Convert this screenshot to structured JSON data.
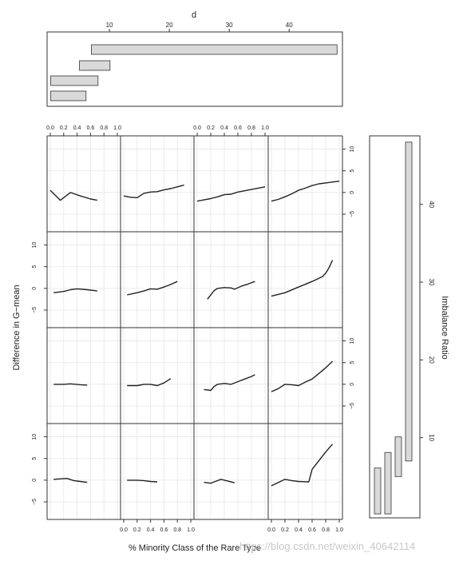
{
  "chart_data": [
    {
      "type": "bar",
      "orientation": "horizontal",
      "title": "d",
      "x_ticks": [
        10,
        20,
        30,
        40
      ],
      "xlim": [
        0,
        48.5
      ],
      "bars": [
        {
          "start": 0.2,
          "end": 6.1
        },
        {
          "start": 0.2,
          "end": 8.1
        },
        {
          "start": 5.0,
          "end": 10.1
        },
        {
          "start": 7.0,
          "end": 48.0
        }
      ],
      "bar_fill": "#d9d9d9"
    },
    {
      "type": "line",
      "layout": "4x4 trellis",
      "xlabel": "% Minority Class of the Rare Type",
      "ylabel": "Difference in G−mean",
      "x_ticks": [
        "0.0",
        "0.2",
        "0.4",
        "0.6",
        "0.8",
        "1.0"
      ],
      "y_ticks": [
        "−5",
        "0",
        "5",
        "10"
      ],
      "xlim": [
        0,
        1
      ],
      "ylim": [
        -8.5,
        12.5
      ],
      "line_color": "#222222",
      "panels": [
        {
          "row": 1,
          "col": 1,
          "x": [
            0.0,
            0.15,
            0.3,
            0.45,
            0.6,
            0.7
          ],
          "y": [
            0.5,
            -1.8,
            0.0,
            -0.8,
            -1.5,
            -1.8
          ]
        },
        {
          "row": 1,
          "col": 2,
          "x": [
            0.0,
            0.1,
            0.2,
            0.3,
            0.4,
            0.5,
            0.6,
            0.7,
            0.8,
            0.9
          ],
          "y": [
            -0.8,
            -1.1,
            -1.2,
            -0.2,
            0.1,
            0.2,
            0.6,
            0.9,
            1.3,
            1.7
          ]
        },
        {
          "row": 1,
          "col": 3,
          "x": [
            0.0,
            0.1,
            0.2,
            0.3,
            0.4,
            0.5,
            0.6,
            0.7,
            0.8,
            0.9,
            1.0
          ],
          "y": [
            -2.0,
            -1.7,
            -1.4,
            -1.0,
            -0.5,
            -0.4,
            0.1,
            0.4,
            0.7,
            1.0,
            1.3
          ]
        },
        {
          "row": 1,
          "col": 4,
          "x": [
            0.0,
            0.1,
            0.2,
            0.3,
            0.4,
            0.5,
            0.6,
            0.7,
            0.8,
            0.9,
            1.0
          ],
          "y": [
            -2.0,
            -1.6,
            -1.0,
            -0.3,
            0.5,
            1.0,
            1.6,
            2.0,
            2.2,
            2.4,
            2.6
          ]
        },
        {
          "row": 2,
          "col": 1,
          "x": [
            0.05,
            0.2,
            0.3,
            0.4,
            0.55,
            0.7
          ],
          "y": [
            -1.0,
            -0.7,
            -0.3,
            -0.1,
            -0.3,
            -0.6
          ]
        },
        {
          "row": 2,
          "col": 2,
          "x": [
            0.05,
            0.2,
            0.3,
            0.4,
            0.5,
            0.6,
            0.7,
            0.8
          ],
          "y": [
            -1.5,
            -1.0,
            -0.6,
            -0.1,
            -0.2,
            0.3,
            0.9,
            1.6
          ]
        },
        {
          "row": 2,
          "col": 3,
          "x": [
            0.15,
            0.25,
            0.3,
            0.4,
            0.5,
            0.55,
            0.65,
            0.75,
            0.85
          ],
          "y": [
            -2.5,
            -0.5,
            0.0,
            0.2,
            0.1,
            -0.2,
            0.5,
            1.0,
            1.6
          ]
        },
        {
          "row": 2,
          "col": 4,
          "x": [
            0.0,
            0.2,
            0.4,
            0.6,
            0.75,
            0.8,
            0.85,
            0.9
          ],
          "y": [
            -1.8,
            -1.0,
            0.3,
            1.6,
            2.7,
            3.5,
            4.8,
            6.5
          ]
        },
        {
          "row": 3,
          "col": 1,
          "x": [
            0.05,
            0.2,
            0.3,
            0.45,
            0.55
          ],
          "y": [
            0.0,
            0.0,
            0.1,
            -0.1,
            -0.2
          ]
        },
        {
          "row": 3,
          "col": 2,
          "x": [
            0.05,
            0.2,
            0.3,
            0.4,
            0.5,
            0.6,
            0.7
          ],
          "y": [
            -0.3,
            -0.3,
            0.0,
            0.0,
            -0.3,
            0.3,
            1.3
          ]
        },
        {
          "row": 3,
          "col": 3,
          "x": [
            0.1,
            0.2,
            0.25,
            0.3,
            0.4,
            0.5,
            0.6,
            0.7,
            0.8,
            0.85
          ],
          "y": [
            -1.2,
            -1.4,
            -0.5,
            0.0,
            0.2,
            0.0,
            0.6,
            1.2,
            1.8,
            2.2
          ]
        },
        {
          "row": 3,
          "col": 4,
          "x": [
            0.0,
            0.1,
            0.2,
            0.3,
            0.4,
            0.5,
            0.6,
            0.7,
            0.8,
            0.9
          ],
          "y": [
            -1.7,
            -1.0,
            0.0,
            -0.1,
            -0.3,
            0.5,
            1.2,
            2.5,
            3.8,
            5.3
          ]
        },
        {
          "row": 4,
          "col": 1,
          "x": [
            0.05,
            0.15,
            0.25,
            0.35,
            0.45,
            0.55
          ],
          "y": [
            0.2,
            0.3,
            0.4,
            -0.1,
            -0.3,
            -0.5
          ]
        },
        {
          "row": 4,
          "col": 2,
          "x": [
            0.05,
            0.2,
            0.3,
            0.4,
            0.5
          ],
          "y": [
            0.0,
            0.0,
            -0.1,
            -0.3,
            -0.4
          ]
        },
        {
          "row": 4,
          "col": 3,
          "x": [
            0.1,
            0.2,
            0.25,
            0.35,
            0.45,
            0.55
          ],
          "y": [
            -0.5,
            -0.7,
            -0.4,
            0.2,
            -0.2,
            -0.6
          ]
        },
        {
          "row": 4,
          "col": 4,
          "x": [
            0.0,
            0.2,
            0.3,
            0.4,
            0.55,
            0.6,
            0.7,
            0.8,
            0.9
          ],
          "y": [
            -1.3,
            0.2,
            -0.1,
            -0.3,
            -0.4,
            2.5,
            4.5,
            6.5,
            8.3
          ]
        }
      ]
    },
    {
      "type": "bar",
      "orientation": "vertical",
      "ylabel": "Imbalance Ratio",
      "y_ticks": [
        10,
        20,
        30,
        40
      ],
      "ylim": [
        0,
        48.5
      ],
      "bars": [
        {
          "start": 0.2,
          "end": 6.1
        },
        {
          "start": 0.2,
          "end": 8.1
        },
        {
          "start": 5.0,
          "end": 10.1
        },
        {
          "start": 7.0,
          "end": 48.0
        }
      ],
      "bar_fill": "#d9d9d9"
    }
  ],
  "watermark": "https://blog.csdn.net/weixin_40642114"
}
